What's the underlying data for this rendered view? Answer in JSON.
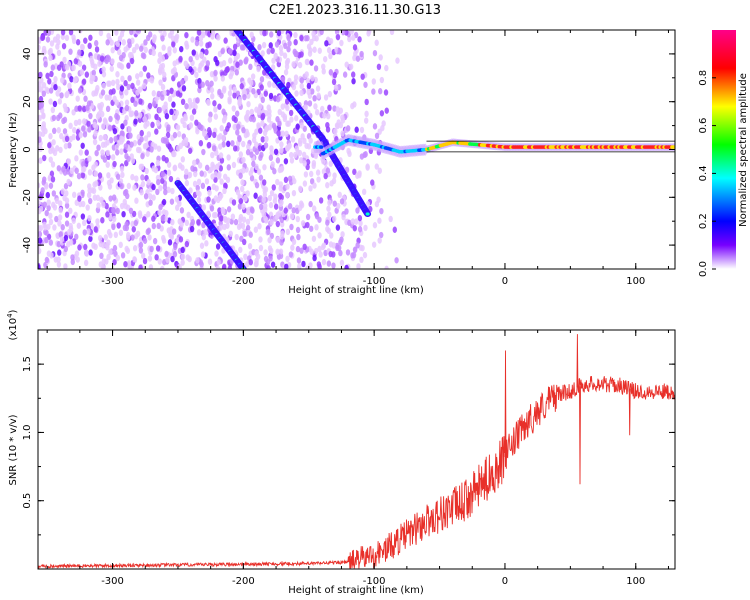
{
  "title": "C2E1.2023.316.11.30.G13",
  "chart_data": [
    {
      "type": "heatmap",
      "xlabel": "Height of straight line (km)",
      "ylabel": "Frequency (Hz)",
      "xlim": [
        -357,
        130
      ],
      "ylim": [
        -50,
        50
      ],
      "xticks": [
        -300,
        -200,
        -100,
        0,
        100
      ],
      "yticks": [
        -40,
        -20,
        0,
        20,
        40
      ],
      "colorbar": {
        "label": "Normalized spectral amplitude",
        "range": [
          0,
          1
        ],
        "ticks": [
          "0.0",
          "0.2",
          "0.4",
          "0.6",
          "0.8"
        ],
        "tick_values": [
          0.0,
          0.2,
          0.4,
          0.6,
          0.8
        ],
        "colors": [
          "#ffffff",
          "#7700ff",
          "#0000ff",
          "#00ffff",
          "#00ff00",
          "#ffff00",
          "#ff0000",
          "#ff0088"
        ]
      },
      "ridges": [
        {
          "x": [
            -205,
            -140
          ],
          "y": [
            50,
            5
          ]
        },
        {
          "x": [
            -140,
            -105
          ],
          "y": [
            5,
            -27
          ]
        },
        {
          "x": [
            -250,
            -200
          ],
          "y": [
            -14,
            -50
          ]
        }
      ],
      "main_line": {
        "x": [
          -140,
          -120,
          -100,
          -80,
          -60,
          -40,
          -20,
          0,
          20,
          60,
          100,
          130
        ],
        "y": [
          -2,
          4,
          2,
          -1,
          0,
          3,
          2,
          1,
          1,
          1,
          1,
          1
        ]
      }
    },
    {
      "type": "line",
      "xlabel": "Height of straight line (km)",
      "ylabel": "SNR (10 * v/v)",
      "y_multiplier": "(x10^4)",
      "xlim": [
        -357,
        130
      ],
      "ylim": [
        0,
        1.75
      ],
      "xticks": [
        -300,
        -200,
        -100,
        0,
        100
      ],
      "yticks": [
        0.5,
        1.0,
        1.5
      ],
      "color": "#e8302a",
      "series": [
        {
          "x": [
            -357,
            -300,
            -250,
            -200,
            -150,
            -120,
            -110,
            -100,
            -90,
            -80,
            -70,
            -60,
            -50,
            -40,
            -30,
            -20,
            -10,
            0,
            10,
            20,
            30,
            40,
            50,
            55,
            60,
            70,
            80,
            90,
            100,
            110,
            120,
            130
          ],
          "values": [
            0.02,
            0.025,
            0.03,
            0.035,
            0.04,
            0.05,
            0.08,
            0.1,
            0.15,
            0.22,
            0.28,
            0.35,
            0.4,
            0.45,
            0.5,
            0.6,
            0.7,
            0.82,
            0.98,
            1.1,
            1.2,
            1.28,
            1.3,
            1.33,
            1.35,
            1.36,
            1.35,
            1.34,
            1.3,
            1.3,
            1.3,
            1.3
          ]
        }
      ],
      "spikes": [
        {
          "x": 0,
          "y": 1.6
        },
        {
          "x": 55,
          "y": 1.72
        },
        {
          "x": 57,
          "y": 0.62
        },
        {
          "x": 95,
          "y": 0.98
        }
      ]
    }
  ]
}
